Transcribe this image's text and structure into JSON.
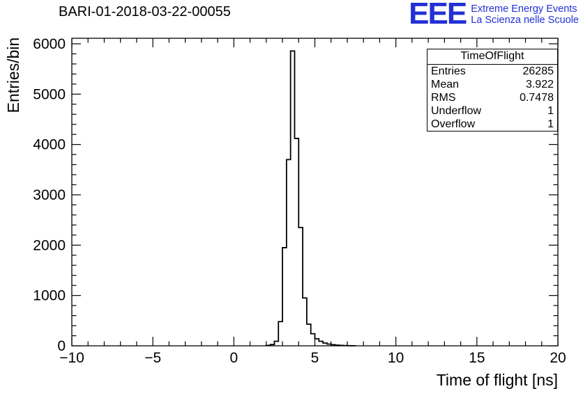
{
  "header": {
    "title": "BARI-01-2018-03-22-00055",
    "logo": {
      "text": "EEE",
      "line1": "Extreme Energy Events",
      "line2": "La Scienza nelle Scuole",
      "color": "#2330d4"
    }
  },
  "stats": {
    "title": "TimeOfFlight",
    "rows": [
      {
        "label": "Entries",
        "value": "26285"
      },
      {
        "label": "Mean",
        "value": "3.922"
      },
      {
        "label": "RMS",
        "value": "0.7478"
      },
      {
        "label": "Underflow",
        "value": "1"
      },
      {
        "label": "Overflow",
        "value": "1"
      }
    ]
  },
  "chart_data": {
    "type": "bar",
    "subtype": "step-histogram",
    "title": "BARI-01-2018-03-22-00055",
    "xlabel": "Time of flight [ns]",
    "ylabel": "Entries/bin",
    "xlim": [
      -10,
      20
    ],
    "ylim": [
      0,
      6110
    ],
    "x_major_ticks": [
      -10,
      -5,
      0,
      5,
      10,
      15,
      20
    ],
    "y_major_ticks": [
      0,
      1000,
      2000,
      3000,
      4000,
      5000,
      6000
    ],
    "x_minor_step": 1,
    "y_minor_step": 200,
    "grid": false,
    "line_color": "#000000",
    "bin_start": 2.0,
    "bin_width": 0.25,
    "bin_values": [
      8,
      25,
      90,
      480,
      1950,
      3700,
      5858,
      4120,
      2350,
      950,
      430,
      240,
      140,
      90,
      55,
      35,
      22,
      14,
      8,
      5,
      3,
      2
    ]
  }
}
